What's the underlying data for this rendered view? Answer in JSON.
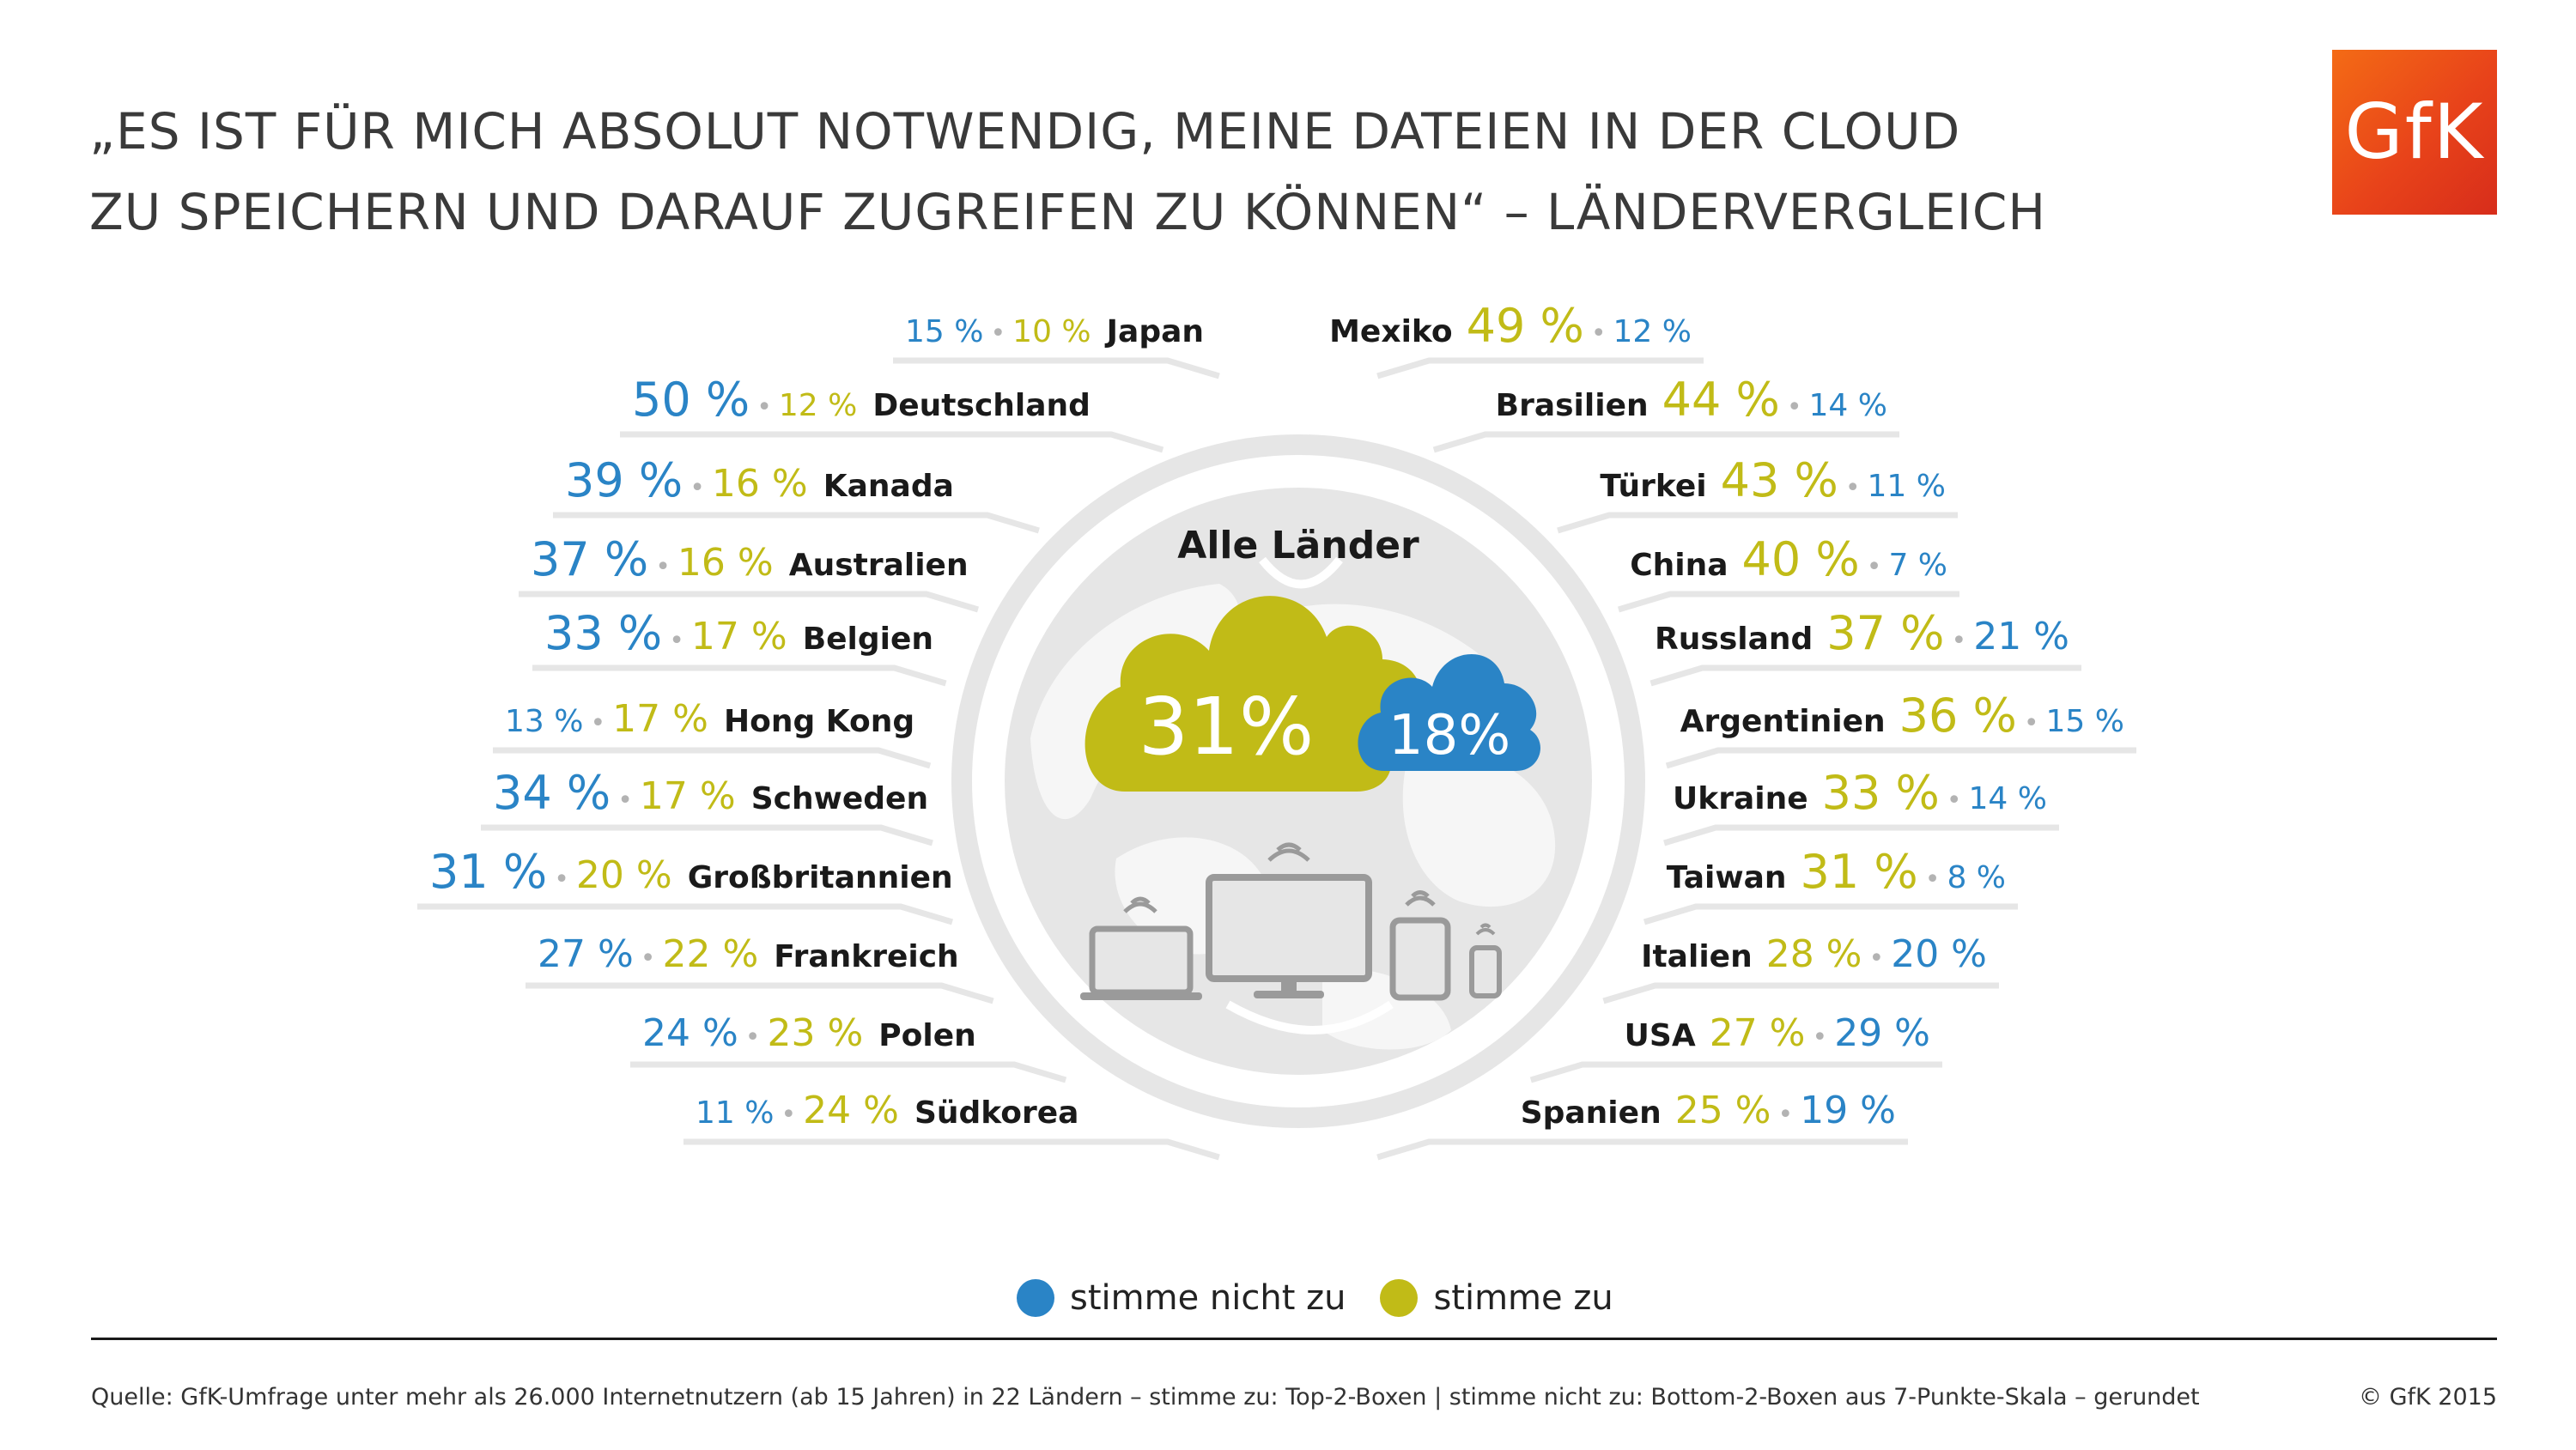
{
  "header": {
    "title_line1": "„ES IST FÜR MICH ABSOLUT NOTWENDIG, MEINE DATEIEN IN DER CLOUD",
    "title_line2": "ZU SPEICHERN UND DARAUF ZUGREIFEN ZU KÖNNEN“ – LÄNDERVERGLEICH",
    "logo_text": "GfK"
  },
  "colors": {
    "stimme_zu": "#c1bb17",
    "stimme_nicht_zu": "#2a84c6"
  },
  "chart_data": {
    "type": "table",
    "center": {
      "label": "Alle Länder",
      "stimme_zu": "31%",
      "stimme_nicht_zu": "18%"
    },
    "left": [
      {
        "country": "Japan",
        "stimme_nicht_zu": 15,
        "stimme_zu": 10
      },
      {
        "country": "Deutschland",
        "stimme_nicht_zu": 50,
        "stimme_zu": 12
      },
      {
        "country": "Kanada",
        "stimme_nicht_zu": 39,
        "stimme_zu": 16
      },
      {
        "country": "Australien",
        "stimme_nicht_zu": 37,
        "stimme_zu": 16
      },
      {
        "country": "Belgien",
        "stimme_nicht_zu": 33,
        "stimme_zu": 17
      },
      {
        "country": "Hong Kong",
        "stimme_nicht_zu": 13,
        "stimme_zu": 17
      },
      {
        "country": "Schweden",
        "stimme_nicht_zu": 34,
        "stimme_zu": 17
      },
      {
        "country": "Großbritannien",
        "stimme_nicht_zu": 31,
        "stimme_zu": 20
      },
      {
        "country": "Frankreich",
        "stimme_nicht_zu": 27,
        "stimme_zu": 22
      },
      {
        "country": "Polen",
        "stimme_nicht_zu": 24,
        "stimme_zu": 23
      },
      {
        "country": "Südkorea",
        "stimme_nicht_zu": 11,
        "stimme_zu": 24
      }
    ],
    "right": [
      {
        "country": "Mexiko",
        "stimme_zu": 49,
        "stimme_nicht_zu": 12
      },
      {
        "country": "Brasilien",
        "stimme_zu": 44,
        "stimme_nicht_zu": 14
      },
      {
        "country": "Türkei",
        "stimme_zu": 43,
        "stimme_nicht_zu": 11
      },
      {
        "country": "China",
        "stimme_zu": 40,
        "stimme_nicht_zu": 7
      },
      {
        "country": "Russland",
        "stimme_zu": 37,
        "stimme_nicht_zu": 21
      },
      {
        "country": "Argentinien",
        "stimme_zu": 36,
        "stimme_nicht_zu": 15
      },
      {
        "country": "Ukraine",
        "stimme_zu": 33,
        "stimme_nicht_zu": 14
      },
      {
        "country": "Taiwan",
        "stimme_zu": 31,
        "stimme_nicht_zu": 8
      },
      {
        "country": "Italien",
        "stimme_zu": 28,
        "stimme_nicht_zu": 20
      },
      {
        "country": "USA",
        "stimme_zu": 27,
        "stimme_nicht_zu": 29
      },
      {
        "country": "Spanien",
        "stimme_zu": 25,
        "stimme_nicht_zu": 19
      }
    ],
    "legend": [
      {
        "label": "stimme nicht zu",
        "key": "stimme_nicht_zu"
      },
      {
        "label": "stimme zu",
        "key": "stimme_zu"
      }
    ]
  },
  "footer": {
    "source": "Quelle: GfK-Umfrage unter mehr als 26.000 Internetnutzern (ab 15 Jahren) in 22 Ländern – stimme zu: Top-2-Boxen  | stimme nicht zu: Bottom-2-Boxen aus 7-Punkte-Skala – gerundet",
    "copyright": "© GfK 2015"
  }
}
